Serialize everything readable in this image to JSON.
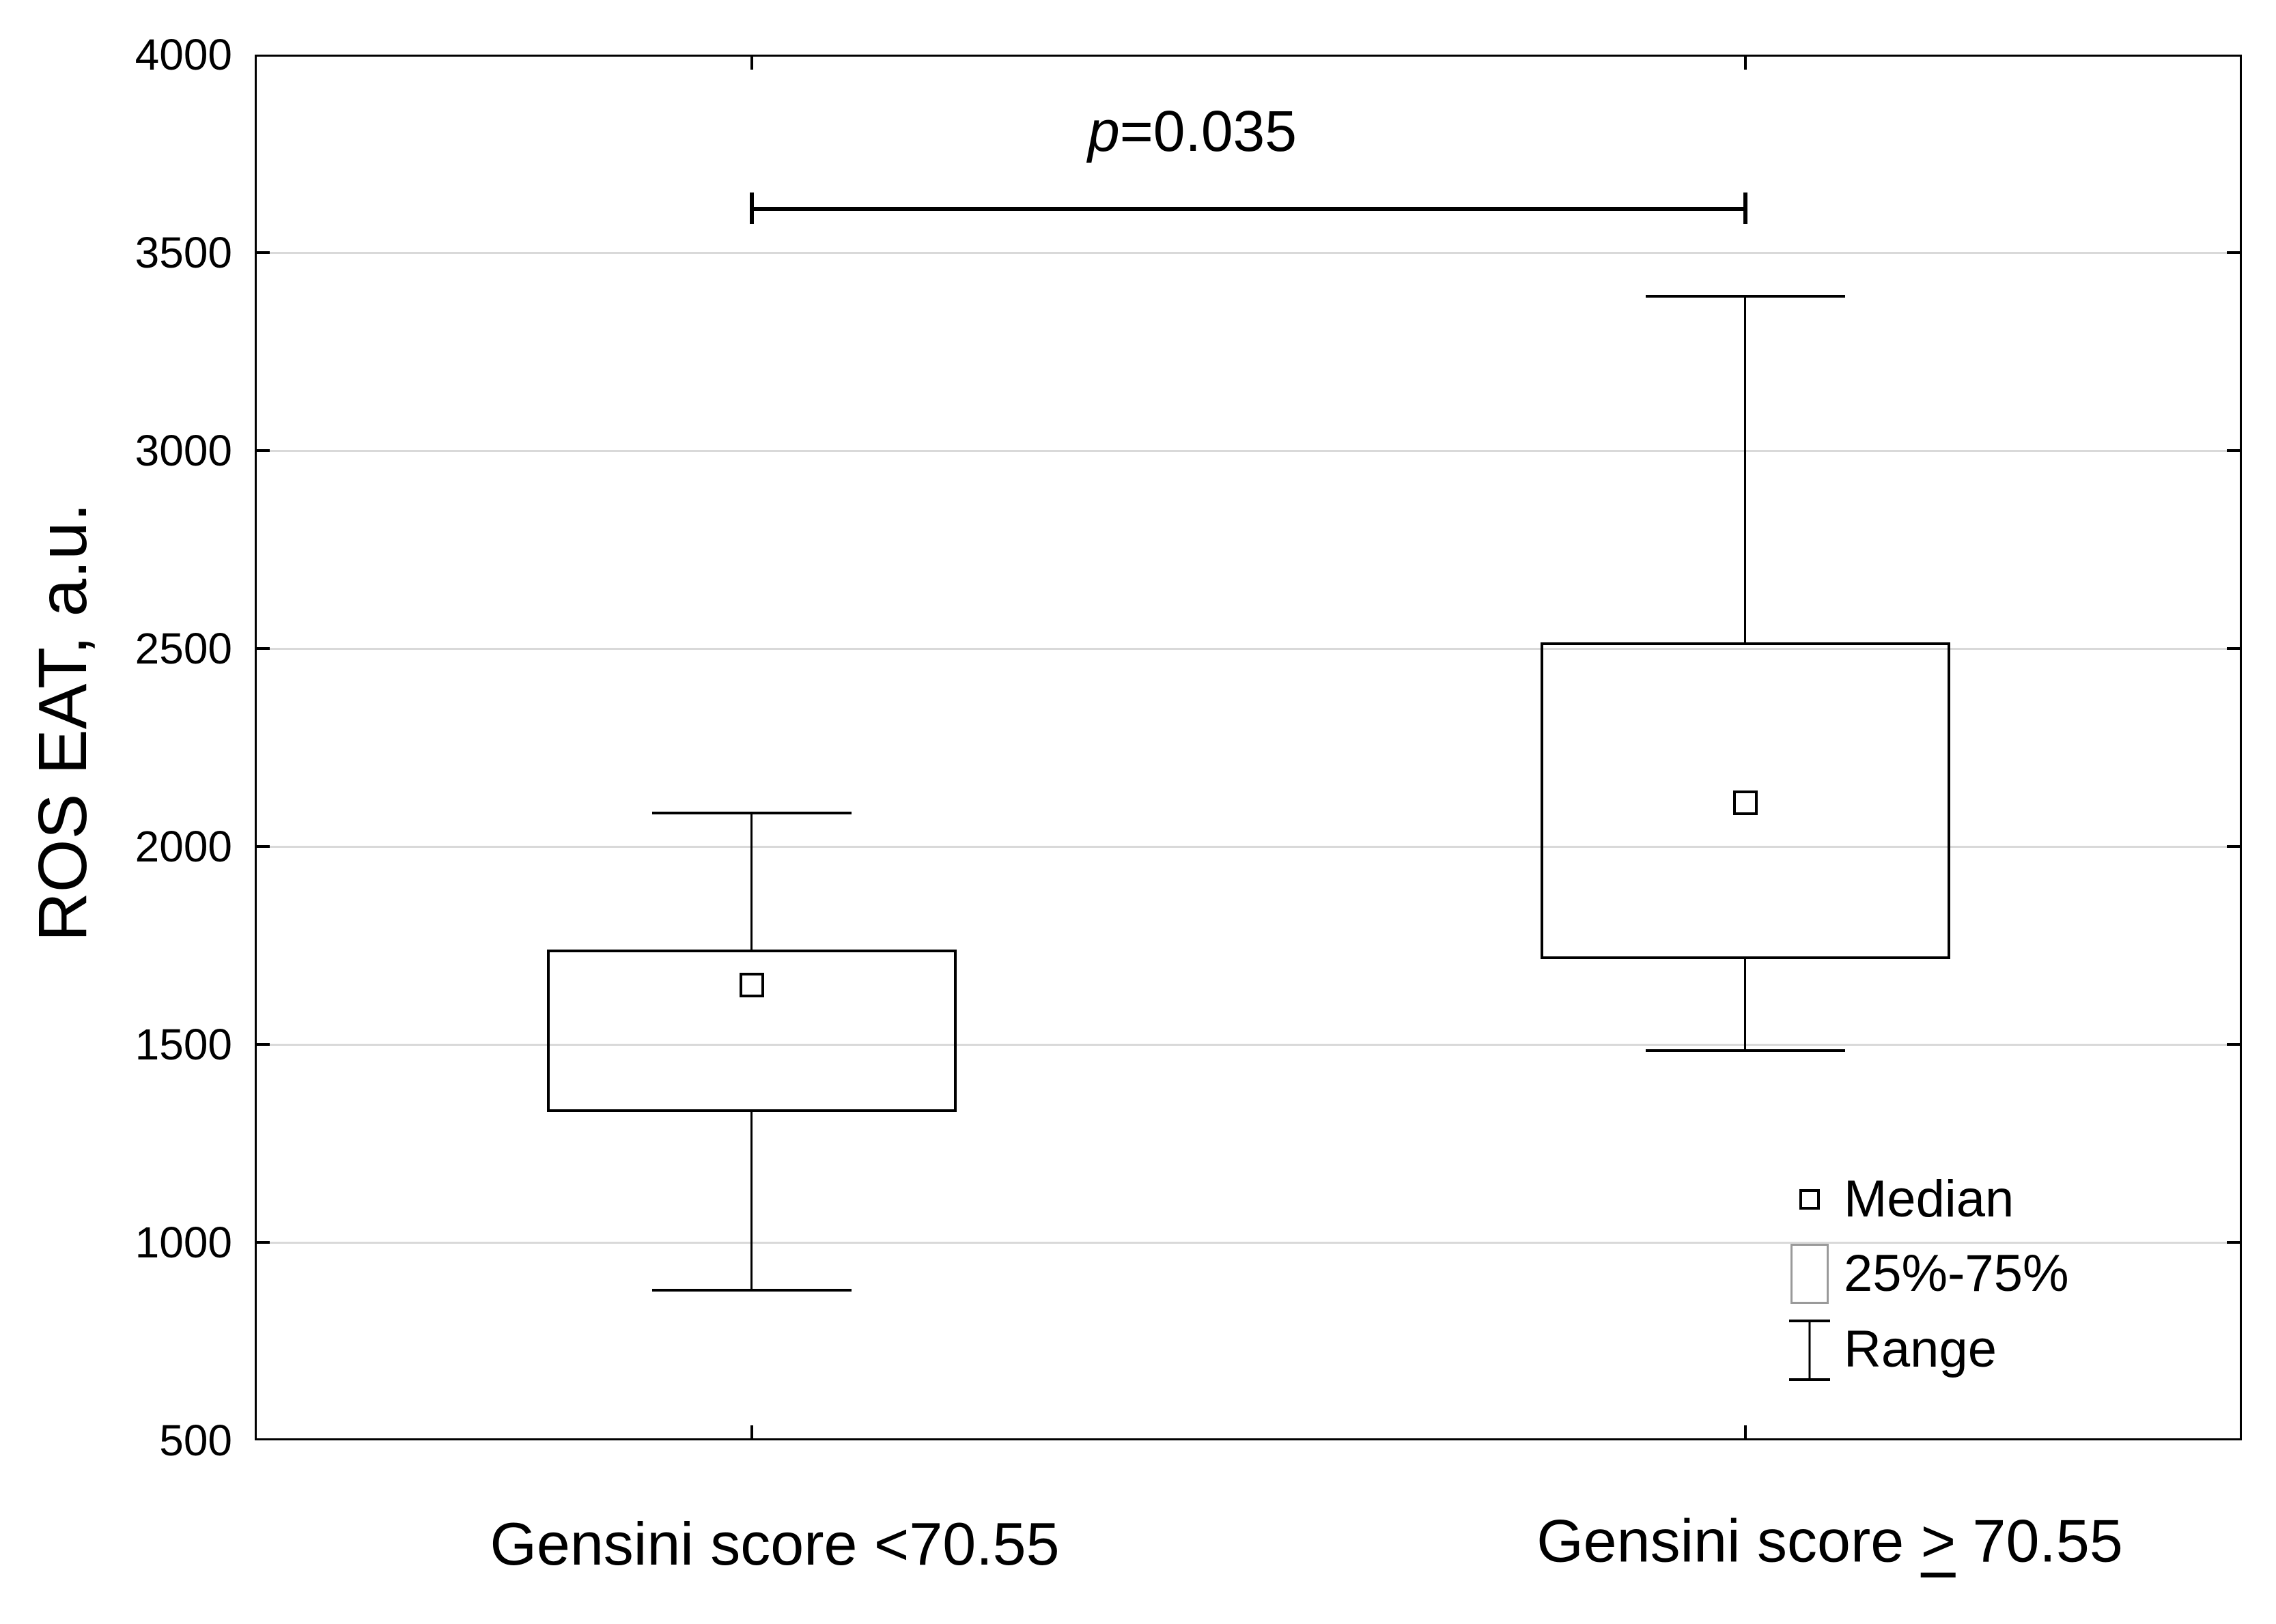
{
  "chart_data": {
    "type": "box",
    "title": "",
    "ylabel": "ROS EAT, a.u.",
    "xlabel": "",
    "ylim": [
      500,
      4000
    ],
    "yticks": [
      500,
      1000,
      1500,
      2000,
      2500,
      3000,
      3500,
      4000
    ],
    "grid": true,
    "grid_color": "#d9d9d9",
    "frame_color": "#000000",
    "categories": [
      "Gensini score <70.55",
      "Gensini score ≥ 70.55"
    ],
    "series": [
      {
        "category": "Gensini score <70.55",
        "min": 880,
        "q1": 1330,
        "median": 1650,
        "q3": 1740,
        "max": 2085
      },
      {
        "category": "Gensini score ≥ 70.55",
        "min": 1485,
        "q1": 1715,
        "median": 2110,
        "q3": 2515,
        "max": 3390
      }
    ],
    "annotation": {
      "text": "p=0.035",
      "level": 3610
    },
    "legend_position": "bottom-right",
    "legend": [
      {
        "marker": "median-square",
        "label": "Median"
      },
      {
        "marker": "box",
        "label": "25%-75%"
      },
      {
        "marker": "range-whisker",
        "label": "Range"
      }
    ]
  }
}
